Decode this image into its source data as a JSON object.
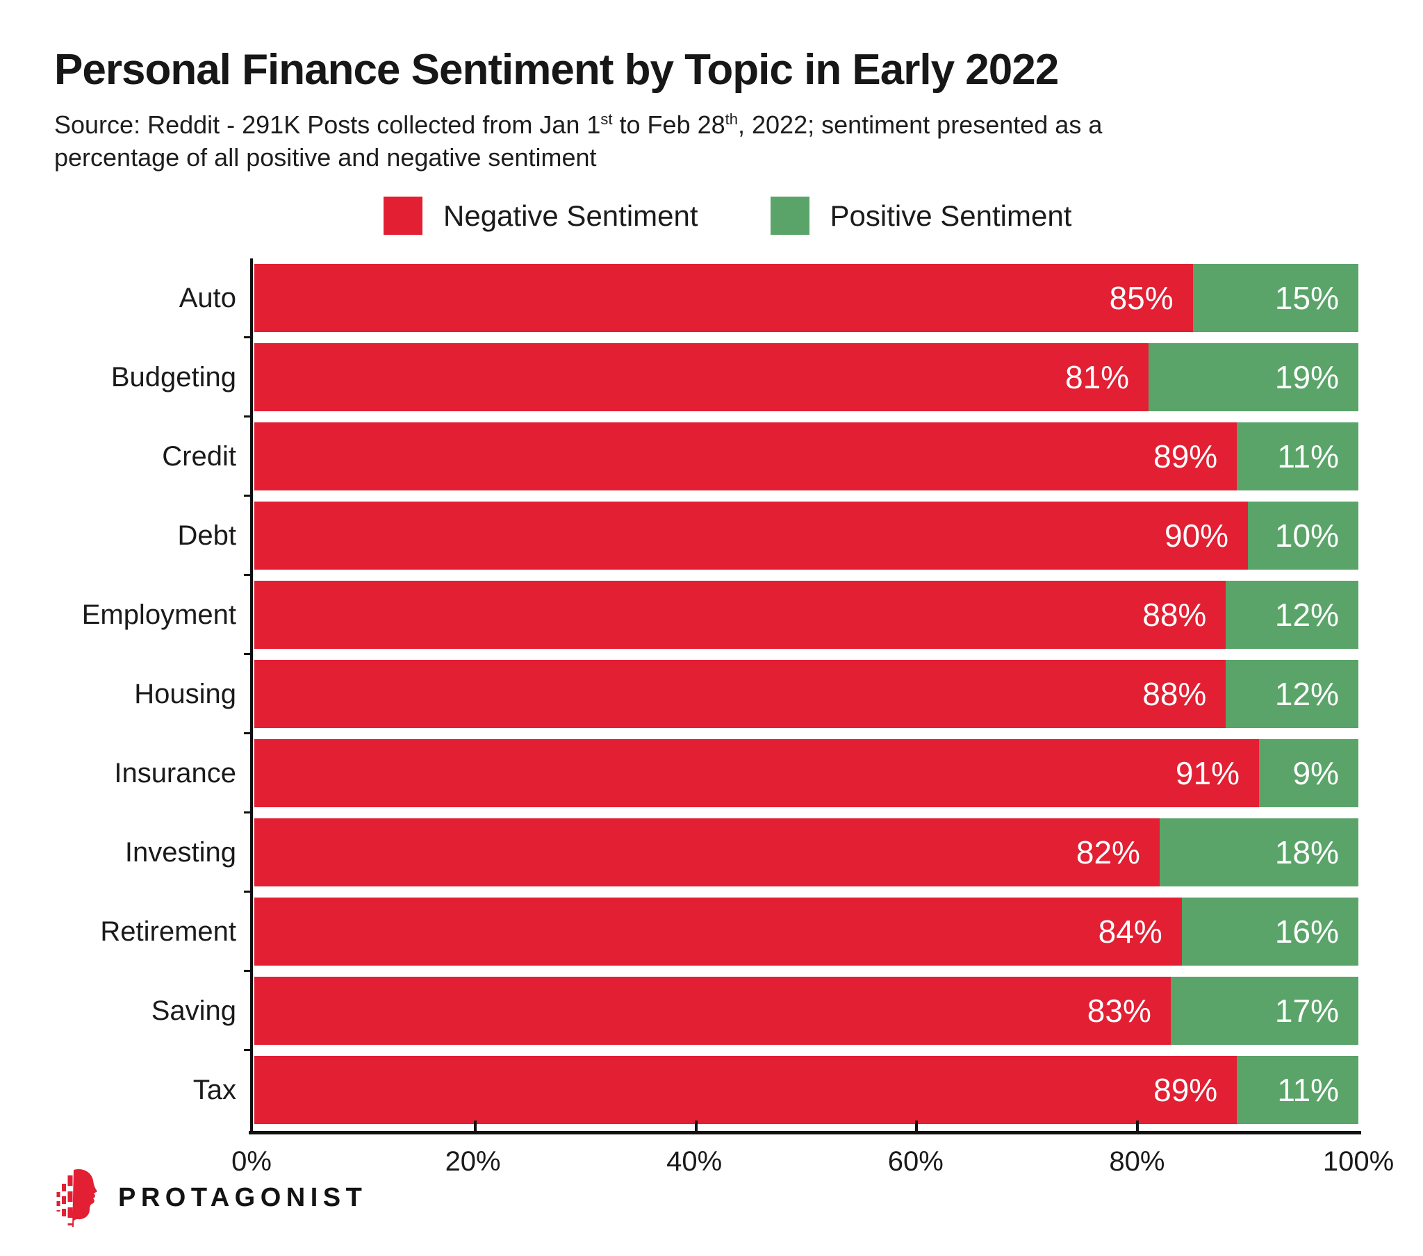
{
  "title": "Personal Finance Sentiment by Topic in Early 2022",
  "source": {
    "part1": "Source: Reddit - 291K Posts collected from Jan 1",
    "sup1": "st",
    "part2": " to Feb 28",
    "sup2": "th",
    "part3": ", 2022; sentiment presented as a",
    "part4": "percentage of all positive and negative sentiment"
  },
  "legend": [
    {
      "label": "Negative Sentiment",
      "color": "#E21F33"
    },
    {
      "label": "Positive Sentiment",
      "color": "#5AA469"
    }
  ],
  "chart_data": {
    "type": "bar",
    "orientation": "horizontal",
    "stacked": true,
    "title": "Personal Finance Sentiment by Topic in Early 2022",
    "categories": [
      "Auto",
      "Budgeting",
      "Credit",
      "Debt",
      "Employment",
      "Housing",
      "Insurance",
      "Investing",
      "Retirement",
      "Saving",
      "Tax"
    ],
    "series": [
      {
        "name": "Negative Sentiment",
        "color": "#E21F33",
        "values": [
          85,
          81,
          89,
          90,
          88,
          88,
          91,
          82,
          84,
          83,
          89
        ]
      },
      {
        "name": "Positive Sentiment",
        "color": "#5AA469",
        "values": [
          15,
          19,
          11,
          10,
          12,
          12,
          9,
          18,
          16,
          17,
          11
        ]
      }
    ],
    "value_label_format": "{value}%",
    "value_labels_color": "#FFFFFF",
    "x_axis": {
      "min": 0,
      "max": 100,
      "ticks": [
        "0%",
        "20%",
        "40%",
        "60%",
        "80%",
        "100%"
      ],
      "grid": false
    },
    "legend_position": "top"
  },
  "brand": {
    "name": "PROTAGONIST"
  }
}
